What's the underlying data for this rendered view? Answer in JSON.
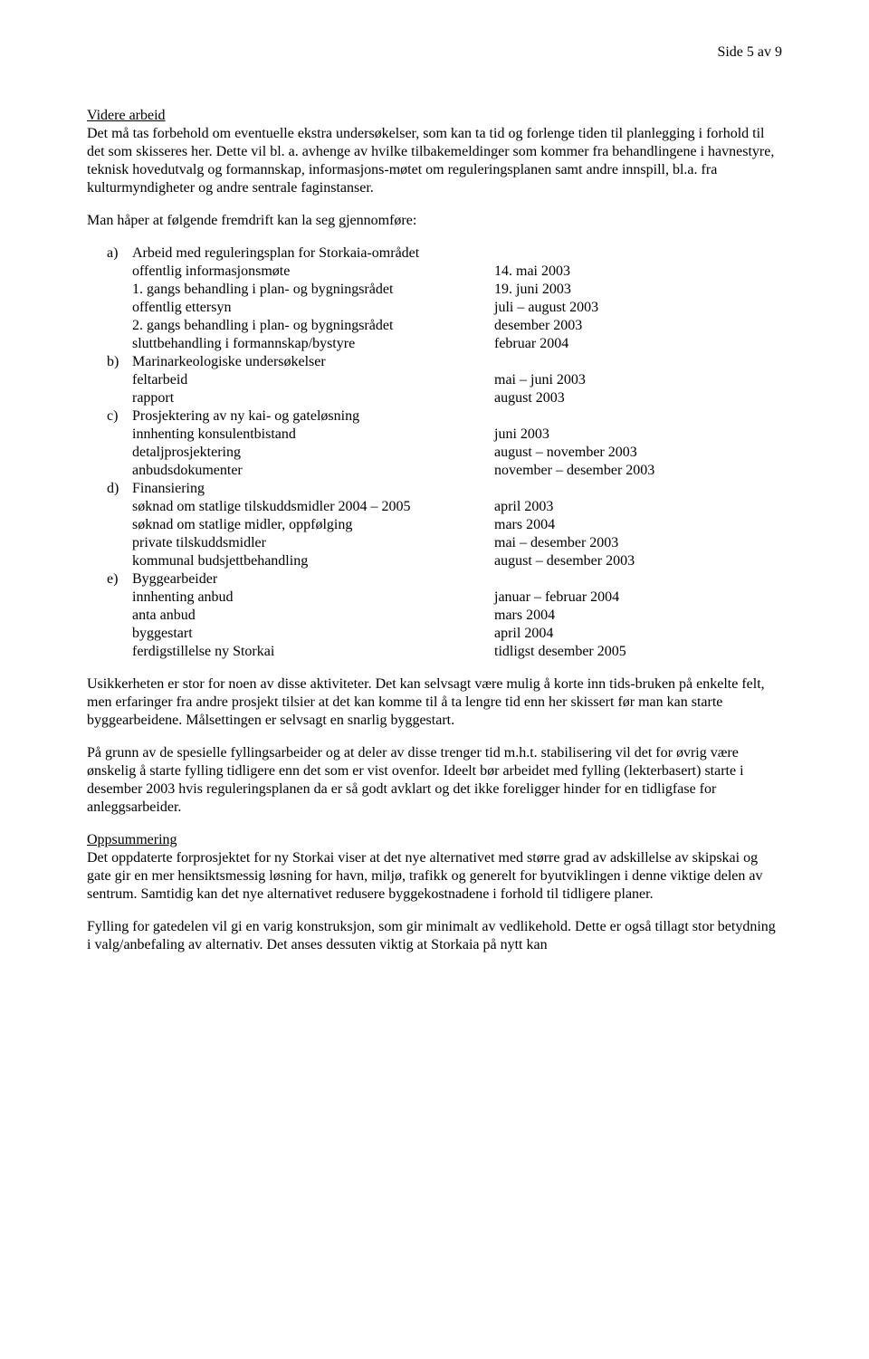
{
  "pageNumber": "Side 5 av 9",
  "heading1": "Videre arbeid",
  "para1": "Det må tas forbehold om eventuelle ekstra undersøkelser, som kan ta tid og forlenge tiden til planlegging i forhold til det som skisseres her. Dette vil bl. a. avhenge av hvilke tilbakemeldinger som kommer fra behandlingene i havnestyre, teknisk hovedutvalg og formannskap, informasjons-møtet om reguleringsplanen samt andre innspill, bl.a. fra kulturmyndigheter og andre sentrale faginstanser.",
  "para2": "Man håper at følgende fremdrift kan la seg gjennomføre:",
  "list": {
    "a": {
      "letter": "a)",
      "title": "Arbeid med reguleringsplan for Storkaia-området",
      "items": [
        {
          "label": "offentlig informasjonsmøte",
          "date": "14. mai 2003"
        },
        {
          "label": "1. gangs behandling i plan- og bygningsrådet",
          "date": "19. juni 2003"
        },
        {
          "label": "offentlig ettersyn",
          "date": "juli – august 2003"
        },
        {
          "label": "2. gangs behandling i plan- og bygningsrådet",
          "date": "desember 2003"
        },
        {
          "label": "sluttbehandling i formannskap/bystyre",
          "date": "februar 2004"
        }
      ]
    },
    "b": {
      "letter": "b)",
      "title": "Marinarkeologiske undersøkelser",
      "items": [
        {
          "label": "feltarbeid",
          "date": "mai – juni 2003"
        },
        {
          "label": "rapport",
          "date": "august 2003"
        }
      ]
    },
    "c": {
      "letter": "c)",
      "title": "Prosjektering av ny kai- og gateløsning",
      "items": [
        {
          "label": "innhenting konsulentbistand",
          "date": "juni 2003"
        },
        {
          "label": "detaljprosjektering",
          "date": "august – november 2003"
        },
        {
          "label": "anbudsdokumenter",
          "date": "november – desember 2003"
        }
      ]
    },
    "d": {
      "letter": "d)",
      "title": "Finansiering",
      "items": [
        {
          "label": "søknad om statlige tilskuddsmidler 2004 – 2005",
          "date": "april 2003"
        },
        {
          "label": "søknad om statlige midler, oppfølging",
          "date": "mars 2004"
        },
        {
          "label": "private tilskuddsmidler",
          "date": "mai – desember 2003"
        },
        {
          "label": "kommunal budsjettbehandling",
          "date": "august – desember 2003"
        }
      ]
    },
    "e": {
      "letter": "e)",
      "title": "Byggearbeider",
      "items": [
        {
          "label": "innhenting anbud",
          "date": "januar – februar 2004"
        },
        {
          "label": "anta anbud",
          "date": "mars 2004"
        },
        {
          "label": "byggestart",
          "date": "april 2004"
        },
        {
          "label": "ferdigstillelse ny Storkai",
          "date": "tidligst desember 2005"
        }
      ]
    }
  },
  "para3": "Usikkerheten er stor for noen av disse aktiviteter. Det kan selvsagt være mulig å korte inn tids-bruken på enkelte felt, men erfaringer fra andre prosjekt tilsier at det kan komme til å ta lengre tid enn her skissert før man kan starte byggearbeidene. Målsettingen er selvsagt en snarlig byggestart.",
  "para4": "På grunn av de spesielle fyllingsarbeider og at deler av disse trenger tid m.h.t. stabilisering vil det for øvrig være ønskelig å starte fylling tidligere enn det som er vist ovenfor. Ideelt bør arbeidet med fylling (lekterbasert) starte i desember 2003 hvis reguleringsplanen da er så godt avklart og det ikke foreligger hinder for en tidligfase for anleggsarbeider.",
  "heading2": "Oppsummering",
  "para5": "Det oppdaterte forprosjektet for ny Storkai viser at det nye alternativet med større grad av adskillelse av skipskai og gate gir en mer hensiktsmessig løsning for havn, miljø, trafikk og generelt for byutviklingen i denne viktige delen av sentrum. Samtidig kan det nye alternativet redusere byggekostnadene i forhold til tidligere planer.",
  "para6": "Fylling for gatedelen vil gi en varig konstruksjon, som gir minimalt av vedlikehold. Dette er også tillagt stor betydning i valg/anbefaling av alternativ. Det anses dessuten viktig at Storkaia på nytt kan"
}
